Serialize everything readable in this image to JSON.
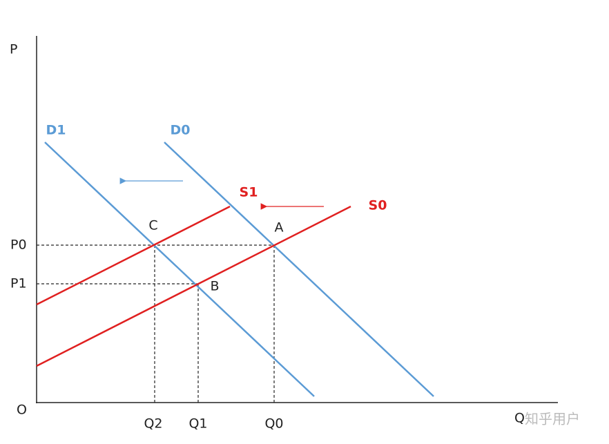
{
  "axes": {
    "y_label": "P",
    "x_label": "Q",
    "origin": "O"
  },
  "price_levels": [
    "P0",
    "P1"
  ],
  "quantity_levels": [
    "Q2",
    "Q1",
    "Q0"
  ],
  "points": [
    "A",
    "B",
    "C"
  ],
  "curves": {
    "demand": [
      "D1",
      "D0"
    ],
    "supply": [
      "S1",
      "S0"
    ]
  },
  "watermark": "知乎用户"
}
